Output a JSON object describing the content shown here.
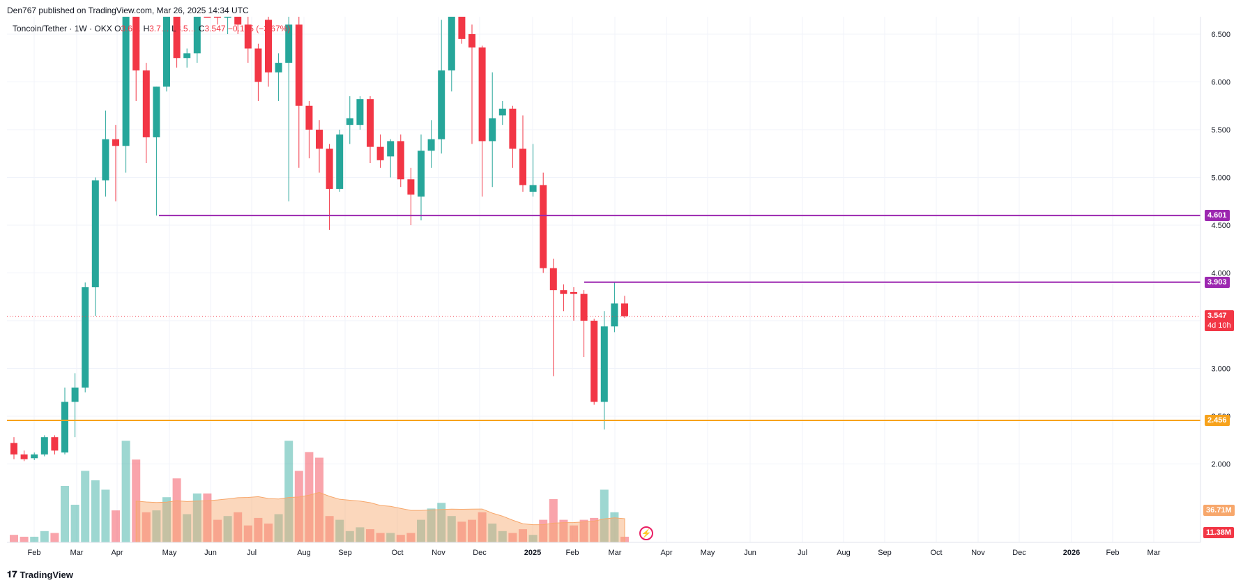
{
  "header": {
    "publish_line": "Den767 published on TradingView.com, Mar 26, 2025 14:34 UTC"
  },
  "legend": {
    "symbol": "Toncoin/Tether · 1W · OKX",
    "o_label": "O",
    "o_val": "3.6…",
    "h_label": "H",
    "h_val": "3.7…",
    "l_label": "L",
    "l_val": "3.5…",
    "c_label": "C",
    "c_val": "3.547",
    "change": "−0.135 (−3.67%)"
  },
  "footer": {
    "brand": "TradingView"
  },
  "colors": {
    "up": "#26a69a",
    "down": "#f23645",
    "level_purple": "#9c27b0",
    "level_orange": "#f7a21b",
    "volume_ma": "#f7a76b"
  },
  "chart_data": {
    "type": "candlestick",
    "price_axis": {
      "ticks": [
        "2.000",
        "2.500",
        "3.000",
        "3.500",
        "4.000",
        "4.500",
        "5.000",
        "5.500",
        "6.000",
        "6.500"
      ],
      "range": [
        1.5,
        6.7
      ]
    },
    "time_axis": {
      "ticks": [
        "Feb",
        "Mar",
        "Apr",
        "May",
        "Jun",
        "Jul",
        "Aug",
        "Sep",
        "Oct",
        "Nov",
        "Dec",
        "2025",
        "Feb",
        "Mar",
        "Apr",
        "May",
        "Jun",
        "Jul",
        "Aug",
        "Sep",
        "Oct",
        "Nov",
        "Dec",
        "2026",
        "Feb",
        "Mar"
      ]
    },
    "levels": [
      {
        "price": 4.601,
        "label": "4.601",
        "color": "#9c27b0"
      },
      {
        "price": 3.903,
        "label": "3.903",
        "color": "#9c27b0"
      },
      {
        "price": 2.456,
        "label": "2.456",
        "color": "#f7a21b"
      }
    ],
    "last_price": {
      "value": 3.547,
      "label": "3.547",
      "countdown": "4d 10h"
    },
    "volume_labels": {
      "ma": "36.71M",
      "current": "11.38M"
    },
    "candles": [
      {
        "o": 2.22,
        "h": 2.28,
        "l": 2.05,
        "c": 2.1,
        "v": 4
      },
      {
        "o": 2.1,
        "h": 2.14,
        "l": 2.03,
        "c": 2.05,
        "v": 3
      },
      {
        "o": 2.06,
        "h": 2.12,
        "l": 2.04,
        "c": 2.1,
        "v": 3
      },
      {
        "o": 2.1,
        "h": 2.3,
        "l": 2.08,
        "c": 2.28,
        "v": 6
      },
      {
        "o": 2.28,
        "h": 2.3,
        "l": 2.1,
        "c": 2.14,
        "v": 5
      },
      {
        "o": 2.12,
        "h": 2.8,
        "l": 2.1,
        "c": 2.65,
        "v": 30
      },
      {
        "o": 2.65,
        "h": 2.95,
        "l": 2.28,
        "c": 2.8,
        "v": 20
      },
      {
        "o": 2.8,
        "h": 3.9,
        "l": 2.75,
        "c": 3.85,
        "v": 38
      },
      {
        "o": 3.85,
        "h": 5.0,
        "l": 3.55,
        "c": 4.97,
        "v": 33
      },
      {
        "o": 4.97,
        "h": 5.7,
        "l": 4.8,
        "c": 5.4,
        "v": 28
      },
      {
        "o": 5.4,
        "h": 5.55,
        "l": 4.75,
        "c": 5.33,
        "v": 17
      },
      {
        "o": 5.33,
        "h": 6.8,
        "l": 5.05,
        "c": 6.7,
        "v": 54
      },
      {
        "o": 6.7,
        "h": 7.2,
        "l": 5.8,
        "c": 6.12,
        "v": 44
      },
      {
        "o": 6.12,
        "h": 6.2,
        "l": 5.15,
        "c": 5.42,
        "v": 16
      },
      {
        "o": 5.42,
        "h": 5.95,
        "l": 4.6,
        "c": 5.95,
        "v": 17
      },
      {
        "o": 5.95,
        "h": 7.8,
        "l": 5.9,
        "c": 7.5,
        "v": 24
      },
      {
        "o": 7.5,
        "h": 7.7,
        "l": 6.15,
        "c": 6.25,
        "v": 34
      },
      {
        "o": 6.25,
        "h": 6.35,
        "l": 6.15,
        "c": 6.3,
        "v": 15
      },
      {
        "o": 6.3,
        "h": 7.4,
        "l": 6.2,
        "c": 7.2,
        "v": 26
      },
      {
        "o": 7.2,
        "h": 7.6,
        "l": 6.85,
        "c": 6.9,
        "v": 26
      },
      {
        "o": 6.9,
        "h": 7.0,
        "l": 6.6,
        "c": 6.85,
        "v": 12
      },
      {
        "o": 6.85,
        "h": 7.2,
        "l": 6.5,
        "c": 7.0,
        "v": 14
      },
      {
        "o": 6.75,
        "h": 6.85,
        "l": 6.5,
        "c": 6.6,
        "v": 16
      },
      {
        "o": 6.6,
        "h": 6.7,
        "l": 6.2,
        "c": 6.35,
        "v": 9
      },
      {
        "o": 6.35,
        "h": 6.4,
        "l": 5.8,
        "c": 6.0,
        "v": 13
      },
      {
        "o": 6.65,
        "h": 6.8,
        "l": 5.95,
        "c": 6.1,
        "v": 10
      },
      {
        "o": 6.1,
        "h": 6.3,
        "l": 5.8,
        "c": 6.2,
        "v": 15
      },
      {
        "o": 6.2,
        "h": 6.8,
        "l": 4.75,
        "c": 6.6,
        "v": 54
      },
      {
        "o": 6.6,
        "h": 6.85,
        "l": 5.1,
        "c": 5.75,
        "v": 38
      },
      {
        "o": 5.75,
        "h": 5.8,
        "l": 5.2,
        "c": 5.5,
        "v": 48
      },
      {
        "o": 5.5,
        "h": 5.6,
        "l": 5.05,
        "c": 5.3,
        "v": 45
      },
      {
        "o": 5.3,
        "h": 5.35,
        "l": 4.45,
        "c": 4.88,
        "v": 14
      },
      {
        "o": 4.88,
        "h": 5.5,
        "l": 4.85,
        "c": 5.45,
        "v": 12
      },
      {
        "o": 5.55,
        "h": 5.85,
        "l": 5.35,
        "c": 5.62,
        "v": 6
      },
      {
        "o": 5.55,
        "h": 5.85,
        "l": 5.5,
        "c": 5.82,
        "v": 8
      },
      {
        "o": 5.82,
        "h": 5.85,
        "l": 5.15,
        "c": 5.32,
        "v": 7
      },
      {
        "o": 5.32,
        "h": 5.45,
        "l": 5.1,
        "c": 5.18,
        "v": 5
      },
      {
        "o": 5.22,
        "h": 5.4,
        "l": 5.0,
        "c": 5.38,
        "v": 5
      },
      {
        "o": 5.38,
        "h": 5.45,
        "l": 4.9,
        "c": 4.98,
        "v": 4
      },
      {
        "o": 4.98,
        "h": 5.1,
        "l": 4.5,
        "c": 4.82,
        "v": 5
      },
      {
        "o": 4.8,
        "h": 5.45,
        "l": 4.55,
        "c": 5.28,
        "v": 12
      },
      {
        "o": 5.28,
        "h": 5.6,
        "l": 5.1,
        "c": 5.4,
        "v": 18
      },
      {
        "o": 5.4,
        "h": 6.65,
        "l": 5.25,
        "c": 6.12,
        "v": 21
      },
      {
        "o": 6.12,
        "h": 7.2,
        "l": 5.9,
        "c": 6.8,
        "v": 14
      },
      {
        "o": 6.8,
        "h": 6.82,
        "l": 6.4,
        "c": 6.45,
        "v": 11
      },
      {
        "o": 6.5,
        "h": 6.6,
        "l": 5.35,
        "c": 6.36,
        "v": 12
      },
      {
        "o": 6.36,
        "h": 6.38,
        "l": 4.8,
        "c": 5.38,
        "v": 16
      },
      {
        "o": 5.38,
        "h": 6.1,
        "l": 4.9,
        "c": 5.62,
        "v": 10
      },
      {
        "o": 5.65,
        "h": 5.8,
        "l": 5.55,
        "c": 5.72,
        "v": 6
      },
      {
        "o": 5.72,
        "h": 5.75,
        "l": 5.1,
        "c": 5.3,
        "v": 5
      },
      {
        "o": 5.3,
        "h": 5.65,
        "l": 4.85,
        "c": 4.92,
        "v": 7
      },
      {
        "o": 4.85,
        "h": 5.35,
        "l": 4.8,
        "c": 4.92,
        "v": 4
      },
      {
        "o": 4.92,
        "h": 5.05,
        "l": 4.0,
        "c": 4.05,
        "v": 12
      },
      {
        "o": 4.05,
        "h": 4.15,
        "l": 2.92,
        "c": 3.82,
        "v": 23
      },
      {
        "o": 3.82,
        "h": 3.88,
        "l": 3.6,
        "c": 3.78,
        "v": 12
      },
      {
        "o": 3.8,
        "h": 3.85,
        "l": 3.5,
        "c": 3.78,
        "v": 9
      },
      {
        "o": 3.78,
        "h": 3.82,
        "l": 3.12,
        "c": 3.5,
        "v": 12
      },
      {
        "o": 3.5,
        "h": 3.52,
        "l": 2.62,
        "c": 2.65,
        "v": 13
      },
      {
        "o": 2.65,
        "h": 3.6,
        "l": 2.36,
        "c": 3.44,
        "v": 28
      },
      {
        "o": 3.44,
        "h": 3.9,
        "l": 3.38,
        "c": 3.68,
        "v": 16
      },
      {
        "o": 3.68,
        "h": 3.76,
        "l": 3.53,
        "c": 3.547,
        "v": 3
      }
    ]
  }
}
